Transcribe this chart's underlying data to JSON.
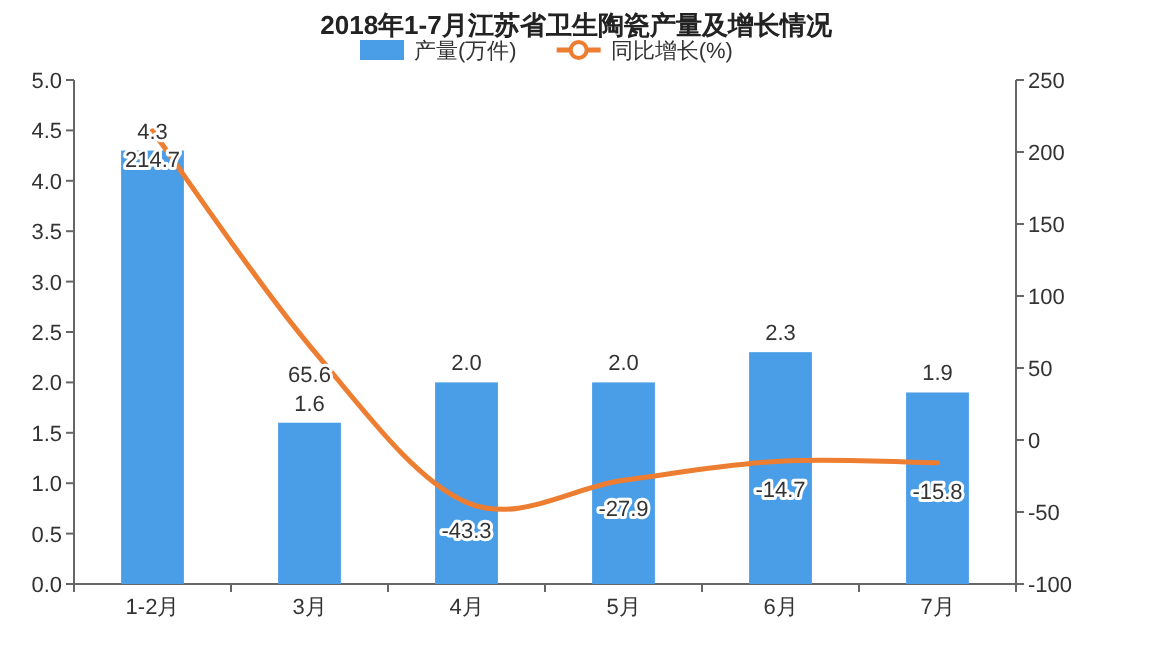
{
  "chart_data": {
    "type": "bar",
    "title": "2018年1-7月江苏省卫生陶瓷产量及增长情况",
    "categories": [
      "1-2月",
      "3月",
      "4月",
      "5月",
      "6月",
      "7月"
    ],
    "series": [
      {
        "name": "产量(万件)",
        "color": "#4a9ee8",
        "values": [
          4.3,
          1.6,
          2.0,
          2.0,
          2.3,
          1.9
        ],
        "value_labels": [
          "4.3",
          "1.6",
          "2.0",
          "2.0",
          "2.3",
          "1.9"
        ]
      },
      {
        "name": "同比增长(%)",
        "type": "line",
        "axis": "y2",
        "color": "#ed7d31",
        "values": [
          214.7,
          65.6,
          -43.3,
          -27.9,
          -14.7,
          -15.8
        ],
        "value_labels": [
          "214.7",
          "65.6",
          "-43.3",
          "-27.9",
          "-14.7",
          "-15.8"
        ]
      }
    ],
    "ylim": [
      0,
      5
    ],
    "yticks": [
      {
        "value": 0,
        "label": "0.0"
      },
      {
        "value": 0.5,
        "label": "0.5"
      },
      {
        "value": 1,
        "label": "1.0"
      },
      {
        "value": 1.5,
        "label": "1.5"
      },
      {
        "value": 2,
        "label": "2.0"
      },
      {
        "value": 2.5,
        "label": "2.5"
      },
      {
        "value": 3,
        "label": "3.0"
      },
      {
        "value": 3.5,
        "label": "3.5"
      },
      {
        "value": 4,
        "label": "4.0"
      },
      {
        "value": 4.5,
        "label": "4.5"
      },
      {
        "value": 5,
        "label": "5.0"
      }
    ],
    "y2lim": [
      -100,
      250
    ],
    "y2ticks": [
      -100,
      -50,
      0,
      50,
      100,
      150,
      200,
      250
    ],
    "legend": "top",
    "grid": false,
    "marker": "none",
    "line_style": "solid"
  }
}
